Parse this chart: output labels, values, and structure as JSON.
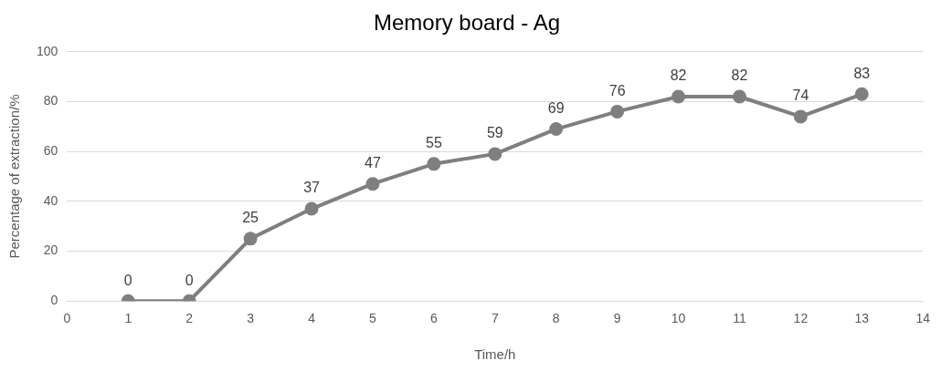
{
  "chart_data": {
    "type": "line",
    "title": "Memory board - Ag",
    "xlabel": "Time/h",
    "ylabel": "Percentage of extraction/%",
    "x": [
      1,
      2,
      3,
      4,
      5,
      6,
      7,
      8,
      9,
      10,
      11,
      12,
      13
    ],
    "series": [
      {
        "color": "#7f7f7f",
        "values": [
          0,
          0,
          25,
          37,
          47,
          55,
          59,
          69,
          76,
          82,
          82,
          74,
          83
        ]
      }
    ],
    "xlim": [
      0,
      14
    ],
    "xticks": [
      0,
      1,
      2,
      3,
      4,
      5,
      6,
      7,
      8,
      9,
      10,
      11,
      12,
      13,
      14
    ],
    "ylim": [
      0,
      100
    ],
    "yticks": [
      0,
      20,
      40,
      60,
      80,
      100
    ],
    "grid": "y",
    "legend": false,
    "marker": "circle",
    "line_style": "solid",
    "data_labels": true
  }
}
